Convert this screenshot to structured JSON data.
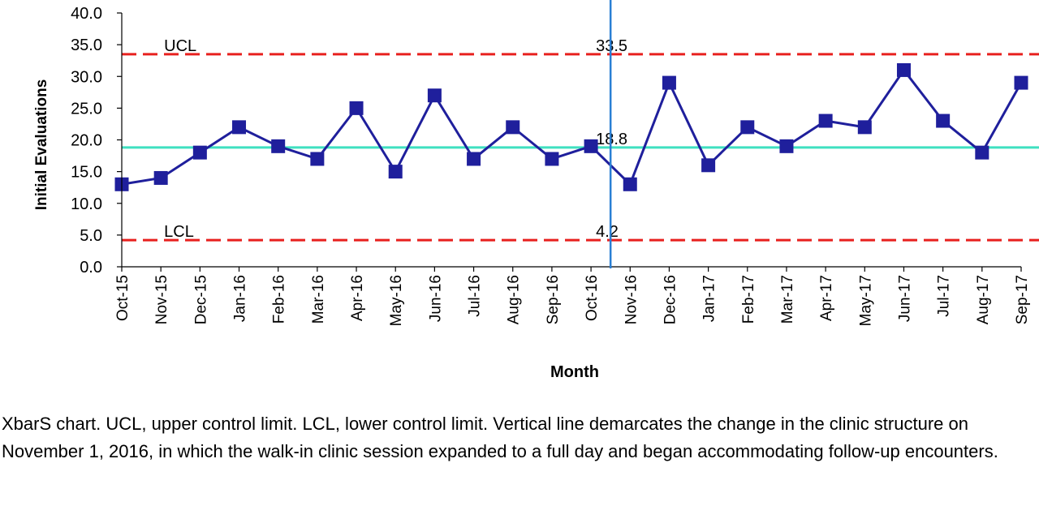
{
  "chart_data": {
    "type": "line",
    "title": "",
    "xlabel": "Month",
    "ylabel": "Initial Evaluations",
    "ylim": [
      0,
      40
    ],
    "y_ticks": [
      "0.0",
      "5.0",
      "10.0",
      "15.0",
      "20.0",
      "25.0",
      "30.0",
      "35.0",
      "40.0"
    ],
    "categories": [
      "Oct-15",
      "Nov-15",
      "Dec-15",
      "Jan-16",
      "Feb-16",
      "Mar-16",
      "Apr-16",
      "May-16",
      "Jun-16",
      "Jul-16",
      "Aug-16",
      "Sep-16",
      "Oct-16",
      "Nov-16",
      "Dec-16",
      "Jan-17",
      "Feb-17",
      "Mar-17",
      "Apr-17",
      "May-17",
      "Jun-17",
      "Jul-17",
      "Aug-17",
      "Sep-17"
    ],
    "series": [
      {
        "values": [
          13,
          14,
          18,
          22,
          19,
          17,
          25,
          15,
          27,
          17,
          22,
          17,
          19,
          13,
          29,
          16,
          22,
          19,
          23,
          22,
          31,
          23,
          18,
          29
        ],
        "color": "#1f1f9c",
        "marker": "square"
      }
    ],
    "control_lines": [
      {
        "label": "UCL",
        "value": 33.5,
        "value_label": "33.5",
        "color": "#e8201e",
        "style": "dashed"
      },
      {
        "label": "",
        "value": 18.8,
        "value_label": "18.8",
        "color": "#3fe0c0",
        "style": "solid"
      },
      {
        "label": "LCL",
        "value": 4.2,
        "value_label": "4.2",
        "color": "#e8201e",
        "style": "dashed"
      }
    ],
    "vertical_marker": {
      "between": [
        "Oct-16",
        "Nov-16"
      ],
      "color": "#2a7fd4"
    },
    "grid": false,
    "legend": "none"
  },
  "caption": "XbarS chart. UCL, upper control limit. LCL, lower control limit. Vertical line demarcates the change in the clinic structure on November 1, 2016, in which the walk-in clinic session expanded to a full day and began accommodating follow-up encounters."
}
